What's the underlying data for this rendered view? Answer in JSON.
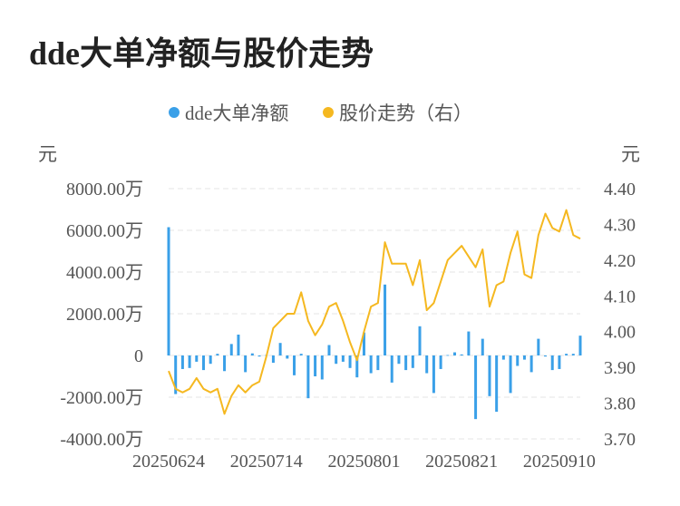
{
  "title": "dde大单净额与股价走势",
  "colors": {
    "bar": "#3aa0e8",
    "line": "#f5b820",
    "grid": "#e6e6e6",
    "text": "#555555"
  },
  "chart_data": {
    "type": "bar",
    "title": "dde大单净额与股价走势",
    "y_left_unit": "元",
    "y_right_unit": "元",
    "y_left_ticks": [
      "8000.00万",
      "6000.00万",
      "4000.00万",
      "2000.00万",
      "0",
      "-2000.00万",
      "-4000.00万"
    ],
    "y_right_ticks": [
      "4.40",
      "4.30",
      "4.20",
      "4.10",
      "4.00",
      "3.90",
      "3.80",
      "3.70"
    ],
    "ylim_left": [
      -4000,
      8000
    ],
    "ylim_right": [
      3.7,
      4.4
    ],
    "x_ticks": [
      "20250624",
      "20250714",
      "20250801",
      "20250821",
      "20250910"
    ],
    "x_tick_index": [
      0,
      14,
      28,
      42,
      56
    ],
    "legend_position": "top-center",
    "grid": true,
    "series": [
      {
        "name": "dde大单净额",
        "type": "bar",
        "axis": "left",
        "values": [
          6150,
          -1850,
          -650,
          -600,
          -300,
          -700,
          -400,
          80,
          -750,
          550,
          1000,
          -800,
          100,
          -50,
          20,
          -350,
          600,
          -150,
          -950,
          80,
          -2050,
          -1000,
          -1150,
          500,
          -400,
          -300,
          -600,
          -1050,
          1100,
          -850,
          -700,
          3400,
          -1300,
          -400,
          -700,
          -600,
          1400,
          -850,
          -1800,
          -650,
          20,
          150,
          50,
          1150,
          -3050,
          800,
          -1950,
          -2700,
          -200,
          -1800,
          -500,
          -200,
          -800,
          800,
          -50,
          -700,
          -650,
          80,
          80,
          950
        ]
      },
      {
        "name": "股价走势（右）",
        "type": "line",
        "axis": "right",
        "values": [
          3.89,
          3.84,
          3.83,
          3.84,
          3.87,
          3.84,
          3.83,
          3.84,
          3.77,
          3.82,
          3.85,
          3.83,
          3.85,
          3.86,
          3.93,
          4.01,
          4.03,
          4.05,
          4.05,
          4.11,
          4.03,
          3.99,
          4.02,
          4.07,
          4.08,
          4.03,
          3.97,
          3.92,
          4.0,
          4.07,
          4.08,
          4.25,
          4.19,
          4.19,
          4.19,
          4.13,
          4.2,
          4.06,
          4.08,
          4.14,
          4.2,
          4.22,
          4.24,
          4.21,
          4.18,
          4.23,
          4.07,
          4.13,
          4.14,
          4.22,
          4.28,
          4.16,
          4.15,
          4.27,
          4.33,
          4.29,
          4.28,
          4.34,
          4.27,
          4.26
        ]
      }
    ]
  }
}
